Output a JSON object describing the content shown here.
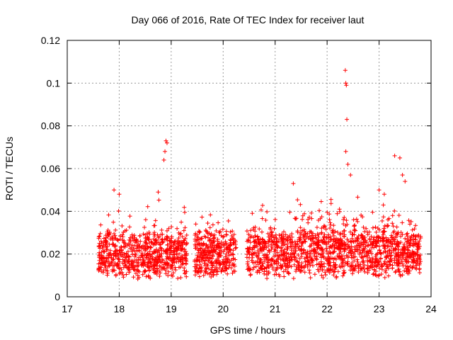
{
  "chart_data": {
    "type": "scatter",
    "title": "Day 066 of 2016, Rate Of TEC Index for receiver laut",
    "xlabel": "GPS time / hours",
    "ylabel": "ROTI / TECUs",
    "xlim": [
      17,
      24
    ],
    "ylim": [
      0,
      0.12
    ],
    "xticks": [
      "17",
      "18",
      "19",
      "20",
      "21",
      "22",
      "23",
      "24"
    ],
    "yticks": [
      "0",
      "0.02",
      "0.04",
      "0.06",
      "0.08",
      "0.1",
      "0.12"
    ],
    "grid": true,
    "marker": "+",
    "color": "#ff0000",
    "gaps_hours": [
      [
        19.3,
        19.45
      ],
      [
        20.25,
        20.45
      ]
    ],
    "data_range_hours": [
      17.6,
      23.8
    ],
    "notable_points": [
      {
        "x": 17.9,
        "y": 0.05
      },
      {
        "x": 18.0,
        "y": 0.048
      },
      {
        "x": 18.75,
        "y": 0.049
      },
      {
        "x": 18.9,
        "y": 0.073
      },
      {
        "x": 18.92,
        "y": 0.072
      },
      {
        "x": 18.88,
        "y": 0.068
      },
      {
        "x": 18.86,
        "y": 0.064
      },
      {
        "x": 21.35,
        "y": 0.053
      },
      {
        "x": 22.35,
        "y": 0.106
      },
      {
        "x": 22.36,
        "y": 0.1
      },
      {
        "x": 22.37,
        "y": 0.099
      },
      {
        "x": 22.38,
        "y": 0.083
      },
      {
        "x": 22.36,
        "y": 0.068
      },
      {
        "x": 22.4,
        "y": 0.062
      },
      {
        "x": 22.45,
        "y": 0.057
      },
      {
        "x": 23.3,
        "y": 0.066
      },
      {
        "x": 23.4,
        "y": 0.065
      },
      {
        "x": 23.45,
        "y": 0.057
      },
      {
        "x": 23.5,
        "y": 0.054
      },
      {
        "x": 23.0,
        "y": 0.05
      },
      {
        "x": 23.1,
        "y": 0.048
      }
    ]
  }
}
